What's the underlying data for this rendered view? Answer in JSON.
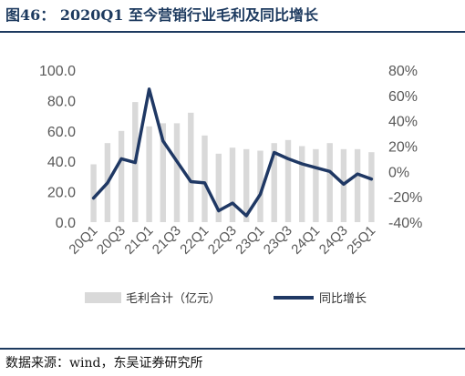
{
  "title": "图46：  2020Q1 至今营销行业毛利及同比增长",
  "source": "数据来源：wind，东吴证券研究所",
  "chart_data": {
    "type": "bar+line",
    "categories": [
      "20Q1",
      "20Q2",
      "20Q3",
      "20Q4",
      "21Q1",
      "21Q2",
      "21Q3",
      "21Q4",
      "22Q1",
      "22Q2",
      "22Q3",
      "22Q4",
      "23Q1",
      "23Q2",
      "23Q3",
      "23Q4",
      "24Q1",
      "24Q2",
      "24Q3",
      "24Q4",
      "25Q1"
    ],
    "category_labels_shown": [
      "20Q1",
      "20Q3",
      "21Q1",
      "21Q3",
      "22Q1",
      "22Q3",
      "23Q1",
      "23Q3",
      "24Q1",
      "24Q3",
      "25Q1"
    ],
    "series": [
      {
        "name": "毛利合计（亿元）",
        "type": "bar",
        "axis": "left",
        "color": "#d9d9d9",
        "values": [
          38,
          52,
          60,
          79,
          63,
          65,
          65,
          72,
          57,
          45,
          49,
          48,
          47,
          52,
          54,
          50,
          48,
          52,
          48,
          48,
          46
        ]
      },
      {
        "name": "同比增长",
        "type": "line",
        "axis": "right",
        "color": "#1f3864",
        "values": [
          -21,
          -9,
          10,
          7,
          65,
          24,
          8,
          -8,
          -9,
          -31,
          -25,
          -35,
          -18,
          15,
          10,
          6,
          3,
          0,
          -10,
          -2,
          -6
        ]
      }
    ],
    "y_left": {
      "min": 0,
      "max": 100,
      "ticks": [
        "0.0",
        "20.0",
        "40.0",
        "60.0",
        "80.0",
        "100.0"
      ]
    },
    "y_right": {
      "min": -40,
      "max": 80,
      "ticks": [
        "-40%",
        "-20%",
        "0%",
        "20%",
        "40%",
        "60%",
        "80%"
      ]
    },
    "legend": {
      "position": "bottom"
    }
  }
}
